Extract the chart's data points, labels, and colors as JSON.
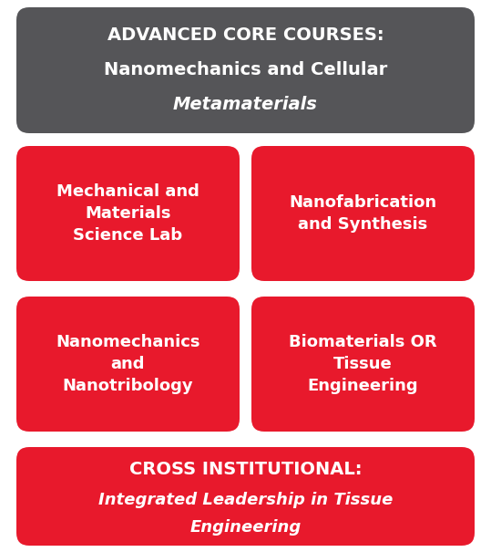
{
  "bg_color": "#ffffff",
  "header_box": {
    "color": "#555558",
    "text_line1": "ADVANCED CORE COURSES:",
    "text_line2": "Nanomechanics and Cellular",
    "text_line3": "Metamaterials",
    "text_color": "#ffffff",
    "font_size_line1": 14,
    "font_size_line23": 14
  },
  "red_color": "#e8192c",
  "red_boxes": [
    {
      "label": "Mechanical and\nMaterials\nScience Lab",
      "col": 0,
      "row": 0
    },
    {
      "label": "Nanofabrication\nand Synthesis",
      "col": 1,
      "row": 0
    },
    {
      "label": "Nanomechanics\nand\nNanotribology",
      "col": 0,
      "row": 1
    },
    {
      "label": "Biomaterials OR\nTissue\nEngineering",
      "col": 1,
      "row": 1
    }
  ],
  "bottom_box": {
    "color": "#e8192c",
    "text_line1": "CROSS INSTITUTIONAL:",
    "text_line2": "Integrated Leadership in Tissue",
    "text_line3": "Engineering",
    "text_color": "#ffffff",
    "font_size_line1": 14,
    "font_size_line23": 13
  },
  "text_color_white": "#ffffff",
  "font_size_box": 13
}
